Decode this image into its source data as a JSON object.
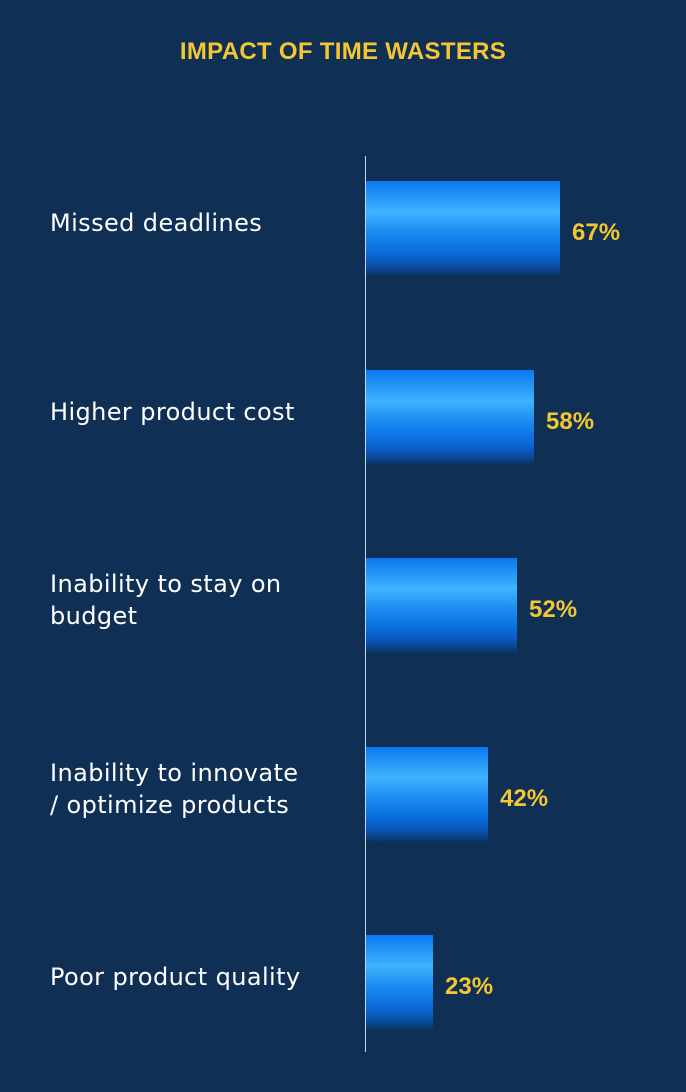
{
  "chart_data": {
    "type": "bar",
    "orientation": "horizontal",
    "title": "IMPACT OF TIME WASTERS",
    "categories": [
      "Missed deadlines",
      "Higher product cost",
      "Inability to stay on\nbudget",
      "Inability to innovate\n/ optimize products",
      "Poor product quality"
    ],
    "values": [
      67,
      58,
      52,
      42,
      23
    ],
    "value_labels": [
      "67%",
      "58%",
      "52%",
      "42%",
      "23%"
    ],
    "value_unit": "%",
    "xlim": [
      0,
      100
    ],
    "xlabel": "",
    "ylabel": "",
    "grid": false,
    "legend": "none",
    "colors": {
      "background": "#0f2f55",
      "bar": "#1e8df2",
      "title": "#f4c730",
      "value_label": "#f4c730",
      "category_label": "#ffffff"
    }
  }
}
